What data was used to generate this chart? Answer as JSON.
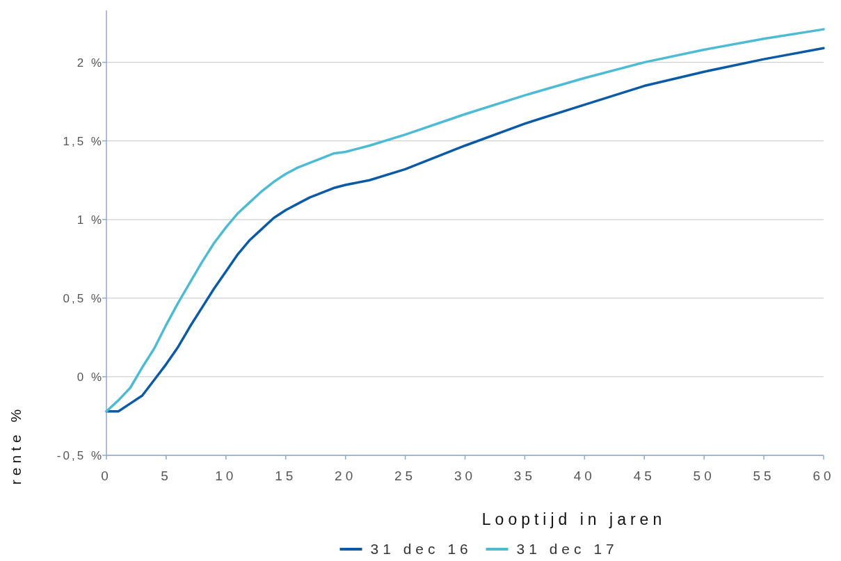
{
  "chart_data": {
    "type": "line",
    "xlabel": "Looptijd in jaren",
    "ylabel": "rente %",
    "x": [
      0,
      1,
      2,
      3,
      4,
      5,
      6,
      7,
      8,
      9,
      10,
      11,
      12,
      13,
      14,
      15,
      16,
      17,
      18,
      19,
      20,
      22,
      25,
      30,
      35,
      40,
      45,
      50,
      55,
      60
    ],
    "series": [
      {
        "name": "31 dec 16",
        "color": "#0a5aa5",
        "values": [
          -0.22,
          -0.22,
          -0.17,
          -0.12,
          -0.02,
          0.08,
          0.19,
          0.32,
          0.44,
          0.56,
          0.67,
          0.78,
          0.87,
          0.94,
          1.01,
          1.06,
          1.1,
          1.14,
          1.17,
          1.2,
          1.22,
          1.25,
          1.32,
          1.47,
          1.61,
          1.73,
          1.85,
          1.94,
          2.02,
          2.09
        ]
      },
      {
        "name": "31 dec 17",
        "color": "#4dbbd4",
        "values": [
          -0.22,
          -0.15,
          -0.07,
          0.06,
          0.18,
          0.33,
          0.47,
          0.6,
          0.73,
          0.85,
          0.95,
          1.04,
          1.11,
          1.18,
          1.24,
          1.29,
          1.33,
          1.36,
          1.39,
          1.42,
          1.43,
          1.47,
          1.54,
          1.67,
          1.79,
          1.9,
          2.0,
          2.08,
          2.15,
          2.21
        ]
      }
    ],
    "xlim": [
      0,
      60
    ],
    "xticks": [
      0,
      5,
      10,
      15,
      20,
      25,
      30,
      35,
      40,
      45,
      50,
      55,
      60
    ],
    "ylim": [
      -0.5,
      2.33
    ],
    "yticks": [
      {
        "value": -0.5,
        "label": "-0,5 %"
      },
      {
        "value": 0,
        "label": "0 %"
      },
      {
        "value": 0.5,
        "label": "0,5 %"
      },
      {
        "value": 1,
        "label": "1 %"
      },
      {
        "value": 1.5,
        "label": "1,5 %"
      },
      {
        "value": 2,
        "label": "2 %"
      }
    ],
    "grid": "y",
    "legend": "bottom",
    "marker": "none",
    "line_style": "solid"
  }
}
